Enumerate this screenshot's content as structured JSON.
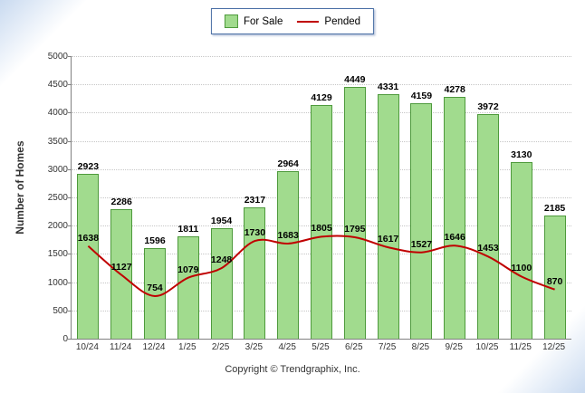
{
  "legend": {
    "for_sale_label": "For Sale",
    "pended_label": "Pended"
  },
  "footer": {
    "copyright": "Copyright © Trendgraphix, Inc."
  },
  "chart_data": {
    "type": "bar",
    "title": "",
    "xlabel": "",
    "ylabel": "Number of Homes",
    "ylim": [
      0,
      5000
    ],
    "ytick_step": 500,
    "grid": true,
    "legend_position": "top",
    "categories": [
      "10/24",
      "11/24",
      "12/24",
      "1/25",
      "2/25",
      "3/25",
      "4/25",
      "5/25",
      "6/25",
      "7/25",
      "8/25",
      "9/25",
      "10/25",
      "11/25",
      "12/25"
    ],
    "series": [
      {
        "name": "For Sale",
        "type": "bar",
        "color": "#a1db8e",
        "border_color": "#4e9a3c",
        "values": [
          2923,
          2286,
          1596,
          1811,
          1954,
          2317,
          2964,
          4129,
          4449,
          4331,
          4159,
          4278,
          3972,
          3130,
          2185
        ]
      },
      {
        "name": "Pended",
        "type": "line",
        "color": "#c00000",
        "values": [
          1638,
          1127,
          754,
          1079,
          1248,
          1730,
          1683,
          1805,
          1795,
          1617,
          1527,
          1646,
          1453,
          1100,
          870
        ]
      }
    ]
  }
}
